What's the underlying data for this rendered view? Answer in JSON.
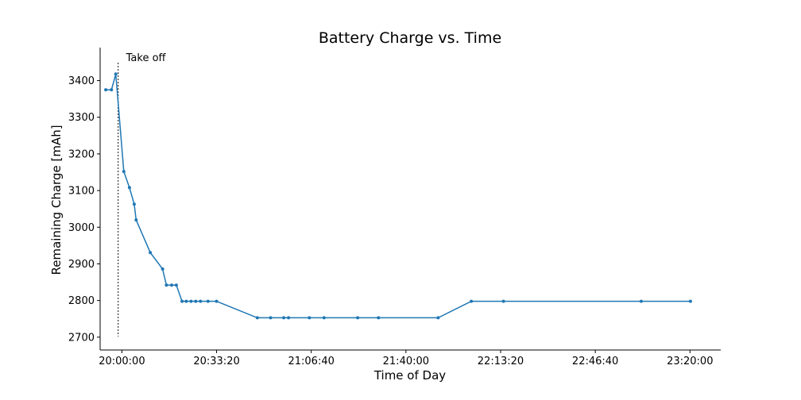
{
  "chart_data": {
    "type": "line",
    "title": "Battery Charge vs. Time",
    "xlabel": "Time of Day",
    "ylabel": "Remaining Charge [mAh]",
    "x_ticks": [
      "20:00:00",
      "20:33:20",
      "21:06:40",
      "21:40:00",
      "22:13:20",
      "22:46:40",
      "23:20:00"
    ],
    "y_ticks": [
      2700,
      2800,
      2900,
      3000,
      3100,
      3200,
      3300,
      3400
    ],
    "xlim": [
      "19:52:20",
      "23:30:50"
    ],
    "ylim": [
      2665,
      3490
    ],
    "grid": false,
    "annotation": {
      "label": "Take off",
      "x": "19:58:40"
    },
    "series": [
      {
        "color": "#1f77b4",
        "x": [
          "19:54:20",
          "19:56:20",
          "19:57:50",
          "20:00:40",
          "20:02:40",
          "20:04:20",
          "20:05:00",
          "20:10:00",
          "20:14:20",
          "20:15:40",
          "20:17:30",
          "20:19:10",
          "20:21:10",
          "20:22:40",
          "20:24:20",
          "20:26:00",
          "20:27:40",
          "20:30:20",
          "20:33:20",
          "20:47:40",
          "20:52:20",
          "20:57:00",
          "20:58:40",
          "21:06:00",
          "21:11:10",
          "21:23:00",
          "21:30:20",
          "21:51:20",
          "22:03:00",
          "22:14:20",
          "23:02:50",
          "23:20:10"
        ],
        "y": [
          3375,
          3375,
          3418,
          3152,
          3108,
          3063,
          3020,
          2931,
          2886,
          2842,
          2842,
          2842,
          2798,
          2798,
          2798,
          2798,
          2798,
          2798,
          2798,
          2753,
          2753,
          2753,
          2753,
          2753,
          2753,
          2753,
          2753,
          2753,
          2798,
          2798,
          2798,
          2798
        ]
      }
    ]
  }
}
